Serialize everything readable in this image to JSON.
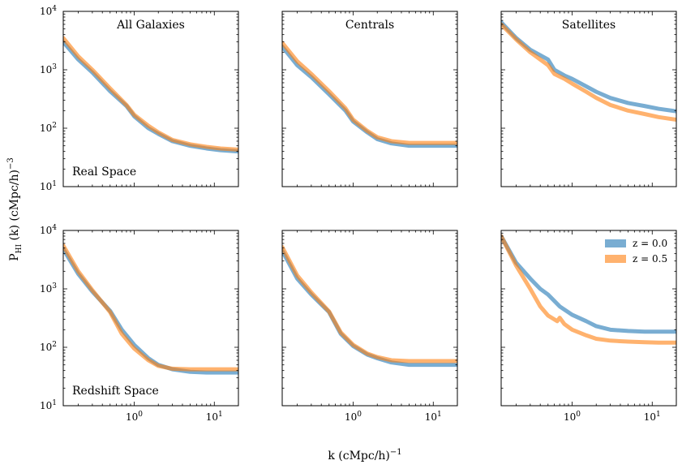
{
  "figure": {
    "xlabel_main": "k (cMpc/h)",
    "xlabel_exp": "−1",
    "ylabel_main": "P",
    "ylabel_sub": "HI",
    "ylabel_rest": " (k) (cMpc/h)",
    "ylabel_exp": "−3"
  },
  "legend": {
    "placement": "top-right",
    "entries": [
      {
        "label": "z = 0.0",
        "color": "#1f77b4"
      },
      {
        "label": "z = 0.5",
        "color": "#ff7f0e"
      }
    ]
  },
  "axes": {
    "xscale": "log",
    "yscale": "log",
    "xlim": [
      0.13,
      20
    ],
    "ylim": [
      10,
      10000
    ],
    "x_tick_labels": [
      {
        "value": 1,
        "base": "10",
        "exp": "0"
      },
      {
        "value": 10,
        "base": "10",
        "exp": "1"
      }
    ],
    "y_tick_labels": [
      {
        "value": 10,
        "base": "10",
        "exp": "1"
      },
      {
        "value": 100,
        "base": "10",
        "exp": "2"
      },
      {
        "value": 1000,
        "base": "10",
        "exp": "3"
      },
      {
        "value": 10000,
        "base": "10",
        "exp": "4"
      }
    ]
  },
  "chart_data": [
    {
      "type": "line",
      "row": 0,
      "col": 0,
      "title": "All Galaxies",
      "annotation": "Real Space",
      "xscale": "log",
      "yscale": "log",
      "xlim": [
        0.13,
        20
      ],
      "ylim": [
        10,
        10000
      ],
      "series": [
        {
          "name": "z = 0.0",
          "x": [
            0.13,
            0.2,
            0.3,
            0.5,
            0.8,
            1,
            1.5,
            2,
            3,
            5,
            8,
            12,
            20
          ],
          "y": [
            3000,
            1500,
            900,
            430,
            240,
            160,
            100,
            80,
            60,
            50,
            45,
            42,
            40
          ]
        },
        {
          "name": "z = 0.5",
          "x": [
            0.13,
            0.2,
            0.3,
            0.5,
            0.8,
            1,
            1.5,
            2,
            3,
            5,
            8,
            12,
            20
          ],
          "y": [
            3500,
            1700,
            1000,
            480,
            250,
            170,
            110,
            85,
            63,
            53,
            48,
            45,
            43
          ]
        }
      ]
    },
    {
      "type": "line",
      "row": 0,
      "col": 1,
      "title": "Centrals",
      "annotation": "",
      "xscale": "log",
      "yscale": "log",
      "xlim": [
        0.13,
        20
      ],
      "ylim": [
        10,
        10000
      ],
      "series": [
        {
          "name": "z = 0.0",
          "x": [
            0.13,
            0.2,
            0.3,
            0.5,
            0.8,
            1,
            1.5,
            2,
            3,
            5,
            8,
            12,
            20
          ],
          "y": [
            2500,
            1200,
            750,
            380,
            200,
            130,
            85,
            65,
            55,
            50,
            50,
            50,
            50
          ]
        },
        {
          "name": "z = 0.5",
          "x": [
            0.13,
            0.2,
            0.3,
            0.5,
            0.8,
            1,
            1.5,
            2,
            3,
            5,
            8,
            12,
            20
          ],
          "y": [
            2900,
            1400,
            850,
            430,
            220,
            140,
            90,
            70,
            60,
            56,
            56,
            56,
            56
          ]
        }
      ]
    },
    {
      "type": "line",
      "row": 0,
      "col": 2,
      "title": "Satellites",
      "annotation": "",
      "xscale": "log",
      "yscale": "log",
      "xlim": [
        0.13,
        20
      ],
      "ylim": [
        10,
        10000
      ],
      "series": [
        {
          "name": "z = 0.0",
          "x": [
            0.13,
            0.2,
            0.3,
            0.5,
            0.6,
            0.8,
            1,
            1.5,
            2,
            3,
            5,
            8,
            12,
            20
          ],
          "y": [
            6500,
            3500,
            2200,
            1500,
            1000,
            800,
            700,
            520,
            420,
            330,
            270,
            240,
            215,
            195
          ]
        },
        {
          "name": "z = 0.5",
          "x": [
            0.13,
            0.2,
            0.3,
            0.5,
            0.6,
            0.8,
            1,
            1.5,
            2,
            3,
            5,
            8,
            12,
            20
          ],
          "y": [
            6000,
            3300,
            2000,
            1200,
            850,
            700,
            580,
            420,
            330,
            250,
            200,
            175,
            155,
            140
          ]
        }
      ]
    },
    {
      "type": "line",
      "row": 1,
      "col": 0,
      "title": "",
      "annotation": "Redshift Space",
      "xscale": "log",
      "yscale": "log",
      "xlim": [
        0.13,
        20
      ],
      "ylim": [
        10,
        10000
      ],
      "series": [
        {
          "name": "z = 0.0",
          "x": [
            0.13,
            0.2,
            0.3,
            0.5,
            0.7,
            1,
            1.5,
            2,
            3,
            5,
            8,
            12,
            20
          ],
          "y": [
            4800,
            1800,
            900,
            420,
            200,
            110,
            65,
            50,
            42,
            38,
            37,
            37,
            37
          ]
        },
        {
          "name": "z = 0.5",
          "x": [
            0.13,
            0.2,
            0.3,
            0.5,
            0.7,
            1,
            1.5,
            2,
            3,
            5,
            8,
            12,
            20
          ],
          "y": [
            5500,
            2000,
            950,
            400,
            170,
            95,
            60,
            48,
            43,
            42,
            42,
            42,
            42
          ]
        }
      ]
    },
    {
      "type": "line",
      "row": 1,
      "col": 1,
      "title": "",
      "annotation": "",
      "xscale": "log",
      "yscale": "log",
      "xlim": [
        0.13,
        20
      ],
      "ylim": [
        10,
        10000
      ],
      "series": [
        {
          "name": "z = 0.0",
          "x": [
            0.13,
            0.2,
            0.3,
            0.5,
            0.7,
            1,
            1.5,
            2,
            3,
            5,
            8,
            12,
            20
          ],
          "y": [
            4500,
            1500,
            800,
            400,
            170,
            105,
            75,
            65,
            55,
            50,
            50,
            50,
            50
          ]
        },
        {
          "name": "z = 0.5",
          "x": [
            0.13,
            0.2,
            0.3,
            0.5,
            0.7,
            1,
            1.5,
            2,
            3,
            5,
            8,
            12,
            20
          ],
          "y": [
            5200,
            1700,
            870,
            410,
            180,
            110,
            78,
            68,
            60,
            58,
            58,
            58,
            58
          ]
        }
      ]
    },
    {
      "type": "line",
      "row": 1,
      "col": 2,
      "title": "",
      "annotation": "",
      "xscale": "log",
      "yscale": "log",
      "xlim": [
        0.13,
        20
      ],
      "ylim": [
        10,
        10000
      ],
      "series": [
        {
          "name": "z = 0.0",
          "x": [
            0.13,
            0.2,
            0.3,
            0.4,
            0.5,
            0.7,
            1,
            1.5,
            2,
            3,
            5,
            8,
            12,
            20
          ],
          "y": [
            8000,
            2800,
            1500,
            1000,
            800,
            500,
            360,
            280,
            230,
            200,
            190,
            185,
            185,
            185
          ]
        },
        {
          "name": "z = 0.5",
          "x": [
            0.13,
            0.2,
            0.3,
            0.4,
            0.5,
            0.65,
            0.7,
            0.8,
            1,
            1.5,
            2,
            3,
            5,
            8,
            12,
            20
          ],
          "y": [
            8000,
            2500,
            1000,
            500,
            350,
            280,
            320,
            250,
            200,
            160,
            140,
            130,
            125,
            122,
            120,
            120
          ]
        }
      ]
    }
  ]
}
